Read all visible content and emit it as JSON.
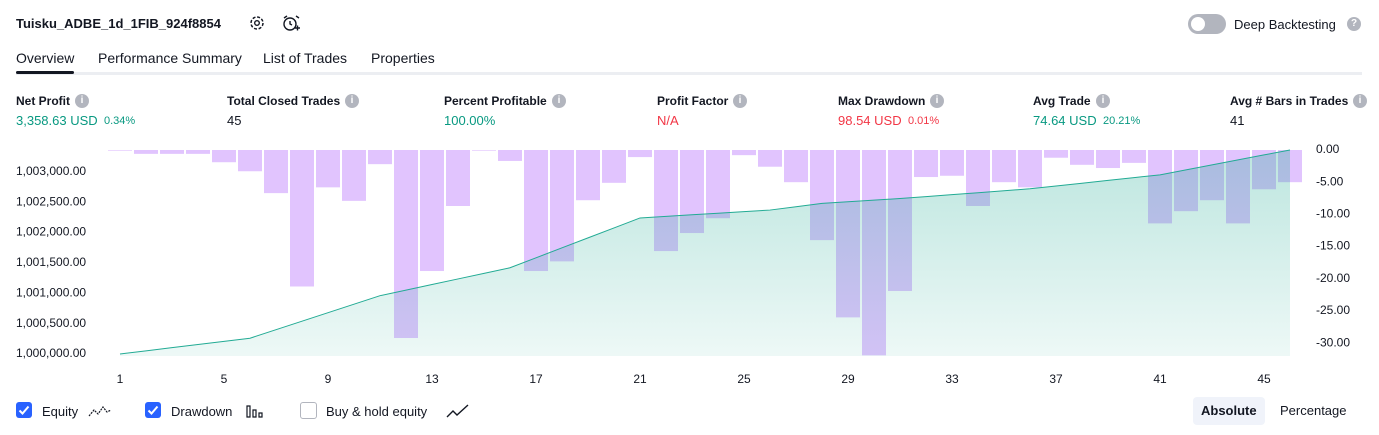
{
  "header": {
    "title": "Tuisku_ADBE_1d_1FIB_924f8854",
    "deep_backtesting": {
      "label": "Deep Backtesting",
      "enabled": false
    }
  },
  "tabs": {
    "items": [
      "Overview",
      "Performance Summary",
      "List of Trades",
      "Properties"
    ],
    "active": 0
  },
  "metrics": [
    {
      "label": "Net Profit",
      "value": "3,358.63 USD",
      "sub": "0.34%",
      "color": "#089981"
    },
    {
      "label": "Total Closed Trades",
      "value": "45"
    },
    {
      "label": "Percent Profitable",
      "value": "100.00%",
      "color": "#089981"
    },
    {
      "label": "Profit Factor",
      "value": "N/A",
      "color": "#f23645"
    },
    {
      "label": "Max Drawdown",
      "value": "98.54 USD",
      "sub": "0.01%",
      "color": "#f23645"
    },
    {
      "label": "Avg Trade",
      "value": "74.64 USD",
      "sub": "20.21%",
      "color": "#089981"
    },
    {
      "label": "Avg # Bars in Trades",
      "value": "41"
    }
  ],
  "chart_data": {
    "type": "combo",
    "x": [
      1,
      2,
      3,
      4,
      5,
      6,
      7,
      8,
      9,
      10,
      11,
      12,
      13,
      14,
      15,
      16,
      17,
      18,
      19,
      20,
      21,
      22,
      23,
      24,
      25,
      26,
      27,
      28,
      29,
      30,
      31,
      32,
      33,
      34,
      35,
      36,
      37,
      38,
      39,
      40,
      41,
      42,
      43,
      44,
      45,
      46
    ],
    "xlim": [
      0.5,
      46.5
    ],
    "xticks": [
      1,
      5,
      9,
      13,
      17,
      21,
      25,
      29,
      33,
      37,
      41,
      45
    ],
    "ylim": [
      999967,
      1003359
    ],
    "yticks": [
      {
        "value": 1000000,
        "label": "1,000,000.00"
      },
      {
        "value": 1000500,
        "label": "1,000,500.00"
      },
      {
        "value": 1001000,
        "label": "1,001,000.00"
      },
      {
        "value": 1001500,
        "label": "1,001,500.00"
      },
      {
        "value": 1002000,
        "label": "1,002,000.00"
      },
      {
        "value": 1002500,
        "label": "1,002,500.00"
      },
      {
        "value": 1003000,
        "label": "1,003,000.00"
      }
    ],
    "y2lim": [
      -32,
      0
    ],
    "y2ticks": [
      {
        "value": 0,
        "label": "0.00"
      },
      {
        "value": -5,
        "label": "-5.00"
      },
      {
        "value": -10,
        "label": "-10.00"
      },
      {
        "value": -15,
        "label": "-15.00"
      },
      {
        "value": -20,
        "label": "-20.00"
      },
      {
        "value": -25,
        "label": "-25.00"
      },
      {
        "value": -30,
        "label": "-30.00"
      }
    ],
    "grid": false,
    "series": [
      {
        "name": "Equity",
        "type": "line",
        "color": "#22ab94",
        "checked": true,
        "values": [
          1000000,
          1000052,
          1000104,
          1000156,
          1000208,
          1000260,
          1000400,
          1000540,
          1000680,
          1000820,
          1000960,
          1001052,
          1001144,
          1001236,
          1001328,
          1001420,
          1001584,
          1001748,
          1001912,
          1002076,
          1002240,
          1002266,
          1002292,
          1002318,
          1002344,
          1002370,
          1002425,
          1002480,
          1002507,
          1002533,
          1002560,
          1002592,
          1002624,
          1002656,
          1002688,
          1002720,
          1002766,
          1002812,
          1002858,
          1002904,
          1002950,
          1003032,
          1003114,
          1003196,
          1003278,
          1003359
        ]
      },
      {
        "name": "Drawdown",
        "type": "bar",
        "axis": "y2",
        "color": "#e1c4fe",
        "checked": true,
        "values": [
          -0.1,
          -0.6,
          -0.6,
          -0.6,
          -1.9,
          -3.3,
          -6.7,
          -21.2,
          -5.8,
          -7.9,
          -2.2,
          -29.2,
          -18.8,
          -8.7,
          -0.1,
          -1.7,
          -18.8,
          -17.3,
          -7.8,
          -5.1,
          -1.1,
          -15.7,
          -12.9,
          -10.6,
          -0.8,
          -2.6,
          -5.0,
          -14.0,
          -26.0,
          -31.9,
          -21.9,
          -4.2,
          -4.0,
          -8.7,
          -5.0,
          -5.8,
          -1.2,
          -2.3,
          -2.8,
          -2.0,
          -11.4,
          -9.5,
          -7.8,
          -11.4,
          -6.1,
          -5.0
        ]
      }
    ]
  },
  "buy_hold": {
    "label": "Buy & hold equity",
    "checked": false
  },
  "scale_modes": {
    "items": [
      "Absolute",
      "Percentage"
    ],
    "active": 0
  }
}
